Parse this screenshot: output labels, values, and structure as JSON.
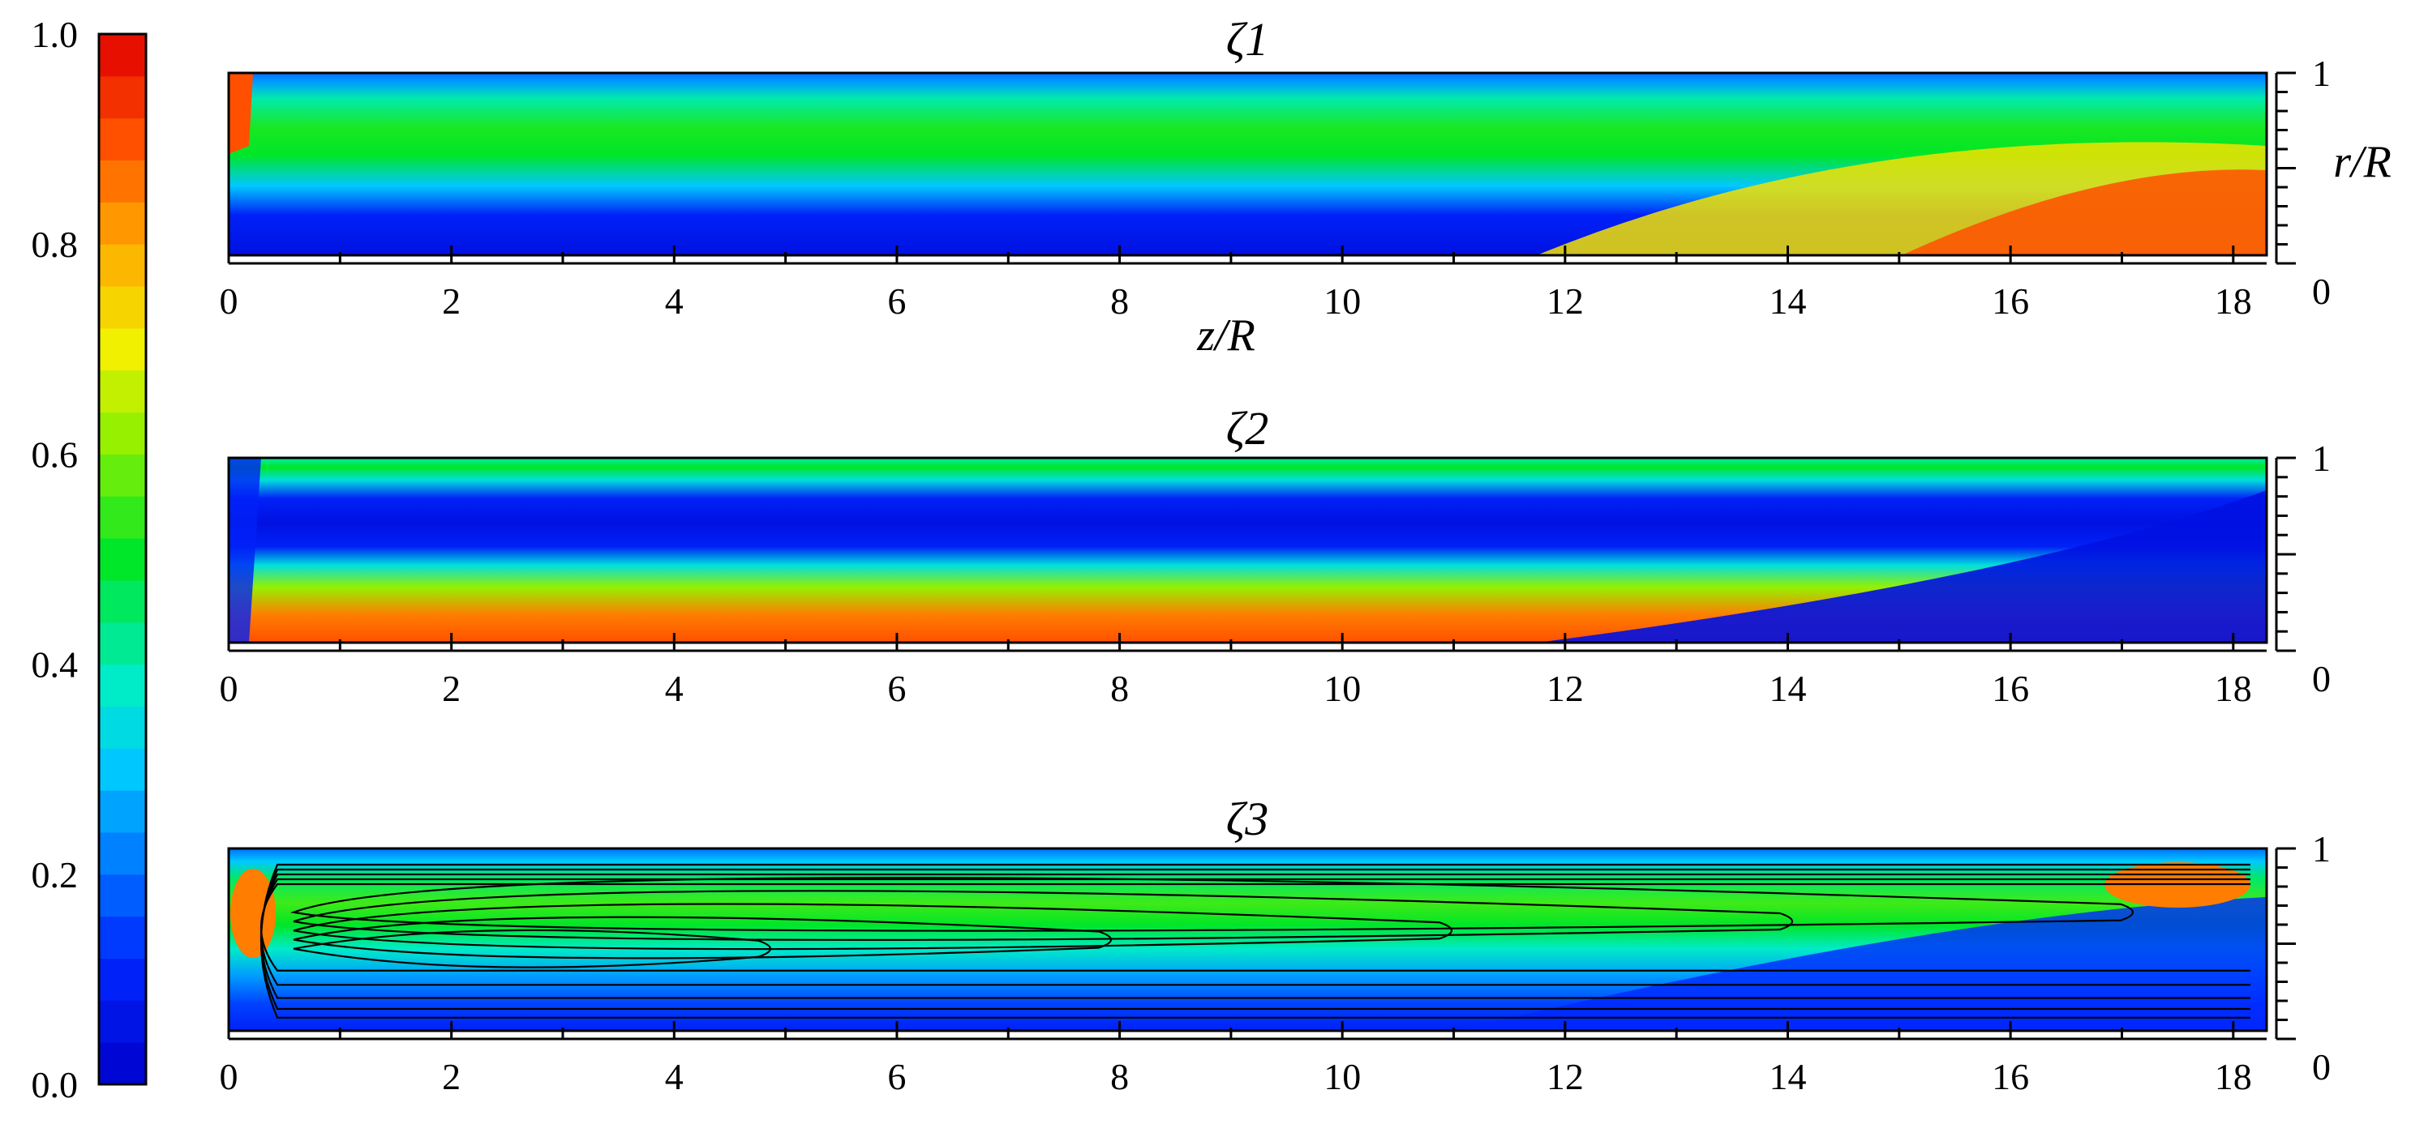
{
  "figure": {
    "colorbar": {
      "ticks": [
        "0.0",
        "0.2",
        "0.4",
        "0.6",
        "0.8",
        "1.0"
      ],
      "range": [
        0,
        1
      ],
      "levels": 25
    },
    "axes": {
      "x_label": "z/R",
      "y_label": "r/R",
      "x_ticks": [
        "0",
        "2",
        "4",
        "6",
        "8",
        "10",
        "12",
        "14",
        "16",
        "18"
      ],
      "y_ticks": [
        "0",
        "1"
      ]
    }
  },
  "chart_data": [
    {
      "type": "heatmap",
      "title": "ζ1",
      "xlim": [
        0,
        18.3
      ],
      "ylim": [
        0,
        1
      ],
      "description_values": {
        "core_band_r": 0.62,
        "core_value_inlet": 0.5,
        "wall_value": 0.05,
        "outlet_corner_value": 0.9
      }
    },
    {
      "type": "heatmap",
      "title": "ζ2",
      "xlim": [
        0,
        18.3
      ],
      "ylim": [
        0,
        1
      ],
      "description_values": {
        "axis_value": 0.9,
        "mid_value": 0.05,
        "top_band_value": 0.5
      }
    },
    {
      "type": "heatmap",
      "title": "ζ3",
      "xlim": [
        0,
        18.3
      ],
      "ylim": [
        0,
        1
      ],
      "streamlines": true,
      "description_values": {
        "upper_band_value": 0.55,
        "axis_value": 0.1,
        "outlet_corner_value": 0.85
      }
    }
  ]
}
